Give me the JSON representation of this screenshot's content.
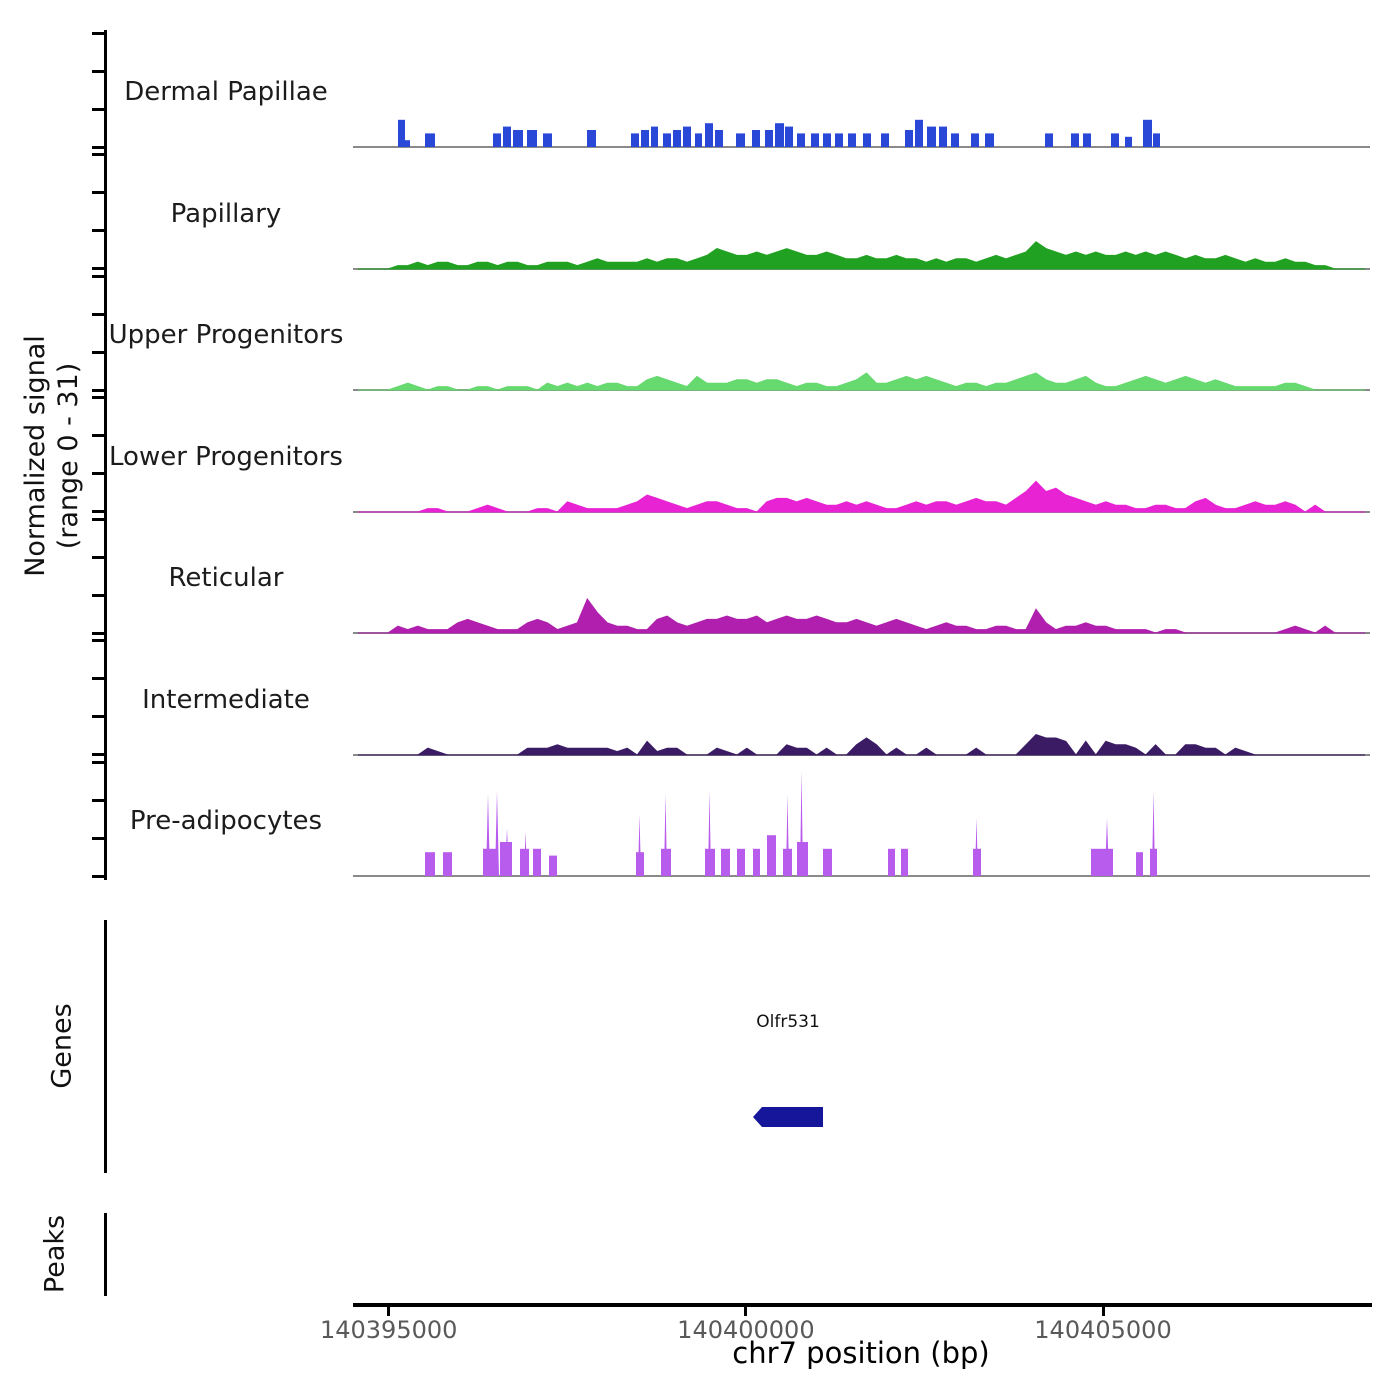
{
  "figure": {
    "y_axis_label_line1": "Normalized signal",
    "y_axis_label_line2": "(range 0 - 31)",
    "genes_label": "Genes",
    "peaks_label": "Peaks",
    "background": "#ffffff",
    "axis_color": "#000000",
    "baseline_color": "#8a8a8a",
    "tick_label_color": "#595959"
  },
  "chart_data": {
    "type": "area",
    "title": "",
    "xlabel": "chr7 position (bp)",
    "ylabel": "Normalized signal (range 0 - 31)",
    "y_range": [
      0,
      31
    ],
    "x_range_bp": [
      140394500,
      140408740
    ],
    "x_ticks": [
      {
        "bp": 140395000,
        "label": "140395000"
      },
      {
        "bp": 140400000,
        "label": "140400000"
      },
      {
        "bp": 140405000,
        "label": "140405000"
      }
    ],
    "bin_bp": 140,
    "peak_format": "[start_bp, width_bp, height, 1_if_spike]",
    "tracks": [
      {
        "name": "Dermal Papillae",
        "color": "#2948d8",
        "style": "blocks",
        "peaks": [
          [
            140395130,
            98,
            8
          ],
          [
            140395228,
            70,
            2
          ],
          [
            140395508,
            140,
            4
          ],
          [
            140396460,
            112,
            4
          ],
          [
            140396600,
            112,
            6
          ],
          [
            140396740,
            140,
            5
          ],
          [
            140396936,
            140,
            5
          ],
          [
            140397160,
            126,
            4
          ],
          [
            140397776,
            126,
            5
          ],
          [
            140398392,
            112,
            4
          ],
          [
            140398532,
            112,
            5
          ],
          [
            140398672,
            98,
            6
          ],
          [
            140398840,
            112,
            4
          ],
          [
            140398980,
            112,
            5
          ],
          [
            140399120,
            112,
            6
          ],
          [
            140399288,
            98,
            4
          ],
          [
            140399428,
            112,
            7
          ],
          [
            140399568,
            112,
            5
          ],
          [
            140399862,
            126,
            4
          ],
          [
            140400086,
            112,
            5
          ],
          [
            140400268,
            112,
            5
          ],
          [
            140400408,
            126,
            7
          ],
          [
            140400548,
            112,
            6
          ],
          [
            140400716,
            112,
            4
          ],
          [
            140400912,
            112,
            4
          ],
          [
            140401080,
            112,
            4
          ],
          [
            140401248,
            112,
            4
          ],
          [
            140401430,
            112,
            4
          ],
          [
            140401640,
            112,
            4
          ],
          [
            140401892,
            112,
            4
          ],
          [
            140402228,
            112,
            5
          ],
          [
            140402368,
            112,
            8
          ],
          [
            140402536,
            126,
            6
          ],
          [
            140402704,
            112,
            6
          ],
          [
            140402872,
            112,
            4
          ],
          [
            140403152,
            112,
            4
          ],
          [
            140403348,
            126,
            4
          ],
          [
            140404188,
            112,
            4
          ],
          [
            140404552,
            112,
            4
          ],
          [
            140404720,
            112,
            4
          ],
          [
            140405112,
            112,
            4
          ],
          [
            140405308,
            98,
            3
          ],
          [
            140405560,
            126,
            8
          ],
          [
            140405700,
            98,
            4
          ]
        ]
      },
      {
        "name": "Papillary",
        "color": "#21a121",
        "style": "wiggle",
        "values": [
          0,
          0,
          0,
          0,
          1,
          1,
          2,
          1,
          2,
          2,
          1,
          1,
          2,
          2,
          1,
          2,
          2,
          1,
          1,
          2,
          2,
          2,
          1,
          2,
          3,
          2,
          2,
          2,
          2,
          3,
          2,
          3,
          3,
          2,
          3,
          4,
          6,
          5,
          4,
          4,
          5,
          4,
          5,
          6,
          5,
          4,
          4,
          5,
          4,
          3,
          3,
          4,
          3,
          3,
          4,
          3,
          3,
          2,
          3,
          2,
          3,
          3,
          2,
          3,
          4,
          3,
          4,
          5,
          8,
          6,
          5,
          4,
          5,
          4,
          5,
          4,
          4,
          5,
          4,
          5,
          4,
          5,
          4,
          3,
          4,
          3,
          3,
          4,
          3,
          2,
          3,
          2,
          2,
          3,
          2,
          2,
          1,
          1,
          0,
          0,
          0,
          0
        ]
      },
      {
        "name": "Upper Progenitors",
        "color": "#66d96f",
        "style": "wiggle",
        "values": [
          0,
          0,
          0,
          0,
          1,
          2,
          1,
          0,
          1,
          1,
          0,
          0,
          1,
          1,
          0,
          1,
          1,
          1,
          0,
          2,
          1,
          2,
          1,
          2,
          1,
          2,
          2,
          1,
          1,
          3,
          4,
          3,
          2,
          1,
          4,
          2,
          2,
          2,
          3,
          3,
          2,
          3,
          3,
          2,
          1,
          2,
          2,
          1,
          1,
          2,
          3,
          5,
          2,
          2,
          3,
          4,
          3,
          4,
          3,
          2,
          1,
          2,
          2,
          1,
          2,
          2,
          3,
          4,
          5,
          3,
          2,
          2,
          3,
          4,
          2,
          1,
          1,
          2,
          3,
          4,
          3,
          2,
          3,
          4,
          3,
          2,
          3,
          2,
          1,
          1,
          1,
          1,
          1,
          2,
          2,
          1,
          0,
          0,
          0,
          0,
          0,
          0
        ]
      },
      {
        "name": "Lower Progenitors",
        "color": "#e823d4",
        "style": "wiggle",
        "values": [
          0,
          0,
          0,
          0,
          0,
          0,
          0,
          1,
          1,
          0,
          0,
          0,
          1,
          2,
          1,
          0,
          0,
          0,
          1,
          1,
          0,
          3,
          2,
          1,
          1,
          1,
          1,
          2,
          3,
          5,
          4,
          3,
          2,
          1,
          2,
          3,
          3,
          2,
          1,
          1,
          0,
          3,
          4,
          4,
          3,
          4,
          3,
          2,
          2,
          3,
          2,
          3,
          2,
          1,
          1,
          2,
          3,
          2,
          3,
          3,
          2,
          3,
          4,
          3,
          3,
          2,
          4,
          6,
          9,
          6,
          7,
          5,
          4,
          3,
          2,
          3,
          2,
          2,
          1,
          1,
          2,
          2,
          1,
          1,
          3,
          4,
          2,
          1,
          1,
          2,
          3,
          2,
          2,
          3,
          2,
          0,
          2,
          0,
          0,
          0,
          0,
          0
        ]
      },
      {
        "name": "Reticular",
        "color": "#b01fad",
        "style": "wiggle",
        "values": [
          0,
          0,
          0,
          0,
          2,
          1,
          2,
          1,
          1,
          1,
          3,
          4,
          3,
          2,
          1,
          1,
          1,
          3,
          4,
          3,
          1,
          2,
          3,
          10,
          6,
          3,
          2,
          2,
          1,
          1,
          4,
          5,
          3,
          2,
          3,
          4,
          4,
          5,
          4,
          4,
          5,
          3,
          4,
          5,
          4,
          4,
          5,
          4,
          3,
          3,
          4,
          3,
          2,
          3,
          4,
          3,
          2,
          1,
          2,
          3,
          2,
          2,
          1,
          1,
          2,
          2,
          1,
          1,
          7,
          3,
          1,
          2,
          2,
          3,
          2,
          2,
          1,
          1,
          1,
          1,
          0,
          1,
          1,
          0,
          0,
          0,
          0,
          0,
          0,
          0,
          0,
          0,
          0,
          1,
          2,
          1,
          0,
          2,
          0,
          0,
          0,
          0
        ]
      },
      {
        "name": "Intermediate",
        "color": "#3b1c64",
        "style": "wiggle",
        "values": [
          0,
          0,
          0,
          0,
          0,
          0,
          0,
          2,
          1,
          0,
          0,
          0,
          0,
          0,
          0,
          0,
          0,
          2,
          2,
          2,
          3,
          2,
          2,
          2,
          2,
          2,
          1,
          2,
          0,
          4,
          1,
          2,
          2,
          0,
          0,
          0,
          2,
          1,
          0,
          2,
          0,
          0,
          0,
          3,
          2,
          2,
          0,
          2,
          0,
          0,
          3,
          5,
          3,
          0,
          2,
          0,
          0,
          2,
          0,
          0,
          0,
          0,
          2,
          0,
          0,
          0,
          0,
          3,
          6,
          5,
          5,
          4,
          0,
          4,
          0,
          4,
          3,
          3,
          2,
          0,
          3,
          0,
          0,
          3,
          3,
          2,
          2,
          0,
          2,
          1,
          0,
          0,
          0,
          0,
          0,
          0,
          0,
          0,
          0,
          0,
          0,
          0
        ]
      },
      {
        "name": "Pre-adipocytes",
        "color": "#b85ced",
        "style": "blocks",
        "peaks": [
          [
            140395508,
            140,
            7
          ],
          [
            140395760,
            126,
            7
          ],
          [
            140396320,
            196,
            8
          ],
          [
            140396362,
            56,
            24,
            1
          ],
          [
            140396488,
            56,
            25,
            1
          ],
          [
            140396558,
            168,
            10
          ],
          [
            140396628,
            56,
            14,
            1
          ],
          [
            140396838,
            126,
            8
          ],
          [
            140396894,
            42,
            13,
            1
          ],
          [
            140397020,
            112,
            8
          ],
          [
            140397244,
            112,
            6
          ],
          [
            140398462,
            112,
            7
          ],
          [
            140398490,
            42,
            18,
            1
          ],
          [
            140398812,
            140,
            8
          ],
          [
            140398854,
            42,
            24,
            1
          ],
          [
            140399428,
            140,
            8
          ],
          [
            140399470,
            42,
            25,
            1
          ],
          [
            140399652,
            126,
            8
          ],
          [
            140399876,
            112,
            8
          ],
          [
            140400100,
            98,
            8
          ],
          [
            140400296,
            126,
            12
          ],
          [
            140400520,
            126,
            8
          ],
          [
            140400562,
            42,
            24,
            1
          ],
          [
            140400716,
            154,
            10
          ],
          [
            140400758,
            42,
            31,
            1
          ],
          [
            140401080,
            126,
            8
          ],
          [
            140401990,
            98,
            8
          ],
          [
            140402172,
            98,
            8
          ],
          [
            140403180,
            112,
            8
          ],
          [
            140403208,
            42,
            17,
            1
          ],
          [
            140404832,
            308,
            8
          ],
          [
            140405028,
            56,
            17,
            1
          ],
          [
            140405462,
            98,
            7
          ],
          [
            140405658,
            98,
            8
          ],
          [
            140405686,
            42,
            25,
            1
          ]
        ]
      }
    ],
    "genes": [
      {
        "name": "Olfr531",
        "start_bp": 140400100,
        "end_bp": 140401080,
        "strand": "-",
        "color": "#16169b"
      }
    ],
    "peaks": []
  }
}
